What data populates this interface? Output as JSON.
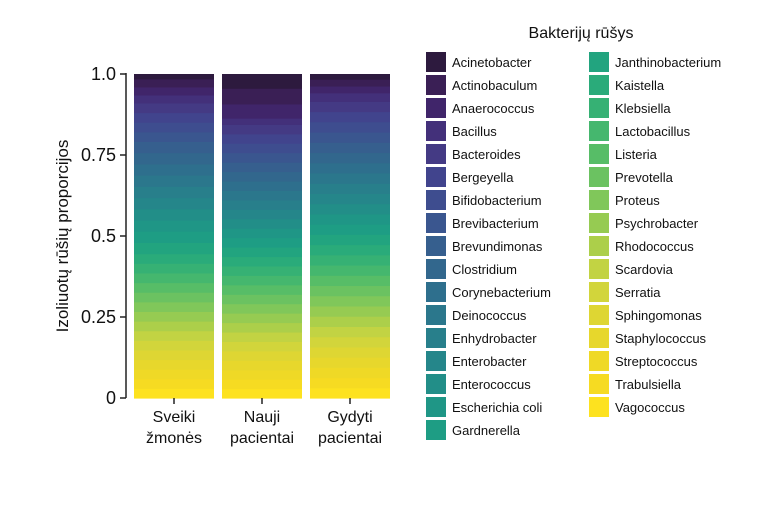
{
  "chart_data": {
    "type": "bar",
    "stacked": true,
    "title": "",
    "xlabel": "",
    "ylabel": "Izoliuotų rūšių proporcijos",
    "ylim": [
      0,
      1
    ],
    "yticks": [
      "0",
      "0.25",
      "0.5",
      "0.75",
      "1.0"
    ],
    "grid": false,
    "legend_title": "Bakterijų rūšys",
    "legend_position": "right",
    "categories": [
      [
        "Sveiki",
        "žmonės"
      ],
      [
        "Nauji",
        "pacientai"
      ],
      [
        "Gydyti",
        "pacientai"
      ]
    ],
    "series": [
      {
        "name": "Acinetobacter",
        "color": "#2d1a3e",
        "values": [
          0.015,
          0.045,
          0.015
        ]
      },
      {
        "name": "Actinobaculum",
        "color": "#3a1f55",
        "values": [
          0.025,
          0.05,
          0.02
        ]
      },
      {
        "name": "Anaerococcus",
        "color": "#40256a",
        "values": [
          0.025,
          0.045,
          0.02
        ]
      },
      {
        "name": "Bacillus",
        "color": "#43307a",
        "values": [
          0.025,
          0.02,
          0.025
        ]
      },
      {
        "name": "Bacteroides",
        "color": "#443a84",
        "values": [
          0.03,
          0.03,
          0.03
        ]
      },
      {
        "name": "Bergeyella",
        "color": "#41448d",
        "values": [
          0.03,
          0.03,
          0.03
        ]
      },
      {
        "name": "Bifidobacterium",
        "color": "#3e4d8f",
        "values": [
          0.03,
          0.03,
          0.03
        ]
      },
      {
        "name": "Brevibacterium",
        "color": "#3a568f",
        "values": [
          0.03,
          0.03,
          0.03
        ]
      },
      {
        "name": "Brevundimonas",
        "color": "#365f8e",
        "values": [
          0.035,
          0.03,
          0.03
        ]
      },
      {
        "name": "Clostridium",
        "color": "#32678d",
        "values": [
          0.035,
          0.03,
          0.03
        ]
      },
      {
        "name": "Corynebacterium",
        "color": "#2e6f8d",
        "values": [
          0.035,
          0.03,
          0.03
        ]
      },
      {
        "name": "Deinococcus",
        "color": "#2b778c",
        "values": [
          0.035,
          0.03,
          0.03
        ]
      },
      {
        "name": "Enhydrobacter",
        "color": "#287f8b",
        "values": [
          0.035,
          0.03,
          0.03
        ]
      },
      {
        "name": "Enterobacter",
        "color": "#25868a",
        "values": [
          0.035,
          0.03,
          0.03
        ]
      },
      {
        "name": "Enterococcus",
        "color": "#228e88",
        "values": [
          0.035,
          0.03,
          0.03
        ]
      },
      {
        "name": "Escherichia coli",
        "color": "#1f9686",
        "values": [
          0.035,
          0.03,
          0.03
        ]
      },
      {
        "name": "Gardnerella",
        "color": "#1e9d84",
        "values": [
          0.035,
          0.03,
          0.03
        ]
      },
      {
        "name": "Janthinobacterium",
        "color": "#22a47f",
        "values": [
          0.035,
          0.03,
          0.03
        ]
      },
      {
        "name": "Kaistella",
        "color": "#2aab7a",
        "values": [
          0.03,
          0.03,
          0.03
        ]
      },
      {
        "name": "Klebsiella",
        "color": "#36b174",
        "values": [
          0.03,
          0.03,
          0.03
        ]
      },
      {
        "name": "Lactobacillus",
        "color": "#45b76e",
        "values": [
          0.03,
          0.03,
          0.03
        ]
      },
      {
        "name": "Listeria",
        "color": "#57bd67",
        "values": [
          0.03,
          0.03,
          0.03
        ]
      },
      {
        "name": "Prevotella",
        "color": "#6bc261",
        "values": [
          0.03,
          0.03,
          0.03
        ]
      },
      {
        "name": "Proteus",
        "color": "#80c75a",
        "values": [
          0.03,
          0.03,
          0.03
        ]
      },
      {
        "name": "Psychrobacter",
        "color": "#96cb52",
        "values": [
          0.03,
          0.03,
          0.03
        ]
      },
      {
        "name": "Rhodococcus",
        "color": "#accf4a",
        "values": [
          0.03,
          0.03,
          0.03
        ]
      },
      {
        "name": "Scardovia",
        "color": "#c2d343",
        "values": [
          0.03,
          0.03,
          0.03
        ]
      },
      {
        "name": "Serratia",
        "color": "#d2d53b",
        "values": [
          0.03,
          0.03,
          0.03
        ]
      },
      {
        "name": "Sphingomonas",
        "color": "#ded633",
        "values": [
          0.03,
          0.03,
          0.03
        ]
      },
      {
        "name": "Staphylococcus",
        "color": "#e7d72c",
        "values": [
          0.03,
          0.03,
          0.03
        ]
      },
      {
        "name": "Streptococcus",
        "color": "#efd926",
        "values": [
          0.03,
          0.03,
          0.03
        ]
      },
      {
        "name": "Trabulsiella",
        "color": "#f6db22",
        "values": [
          0.03,
          0.03,
          0.03
        ]
      },
      {
        "name": "Vagococcus",
        "color": "#fde21f",
        "values": [
          0.03,
          0.03,
          0.03
        ]
      }
    ]
  }
}
